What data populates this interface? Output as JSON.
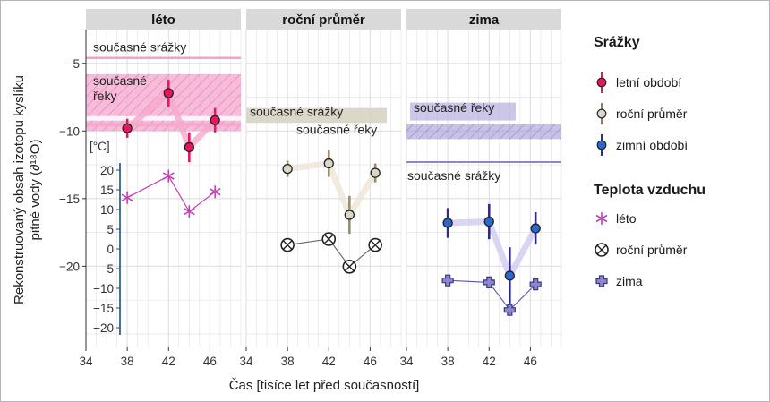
{
  "chart_data": {
    "type": "scatter",
    "panels": [
      {
        "label": "léto",
        "isotope": {
          "color": "#e4185a",
          "x": [
            38,
            42,
            44,
            46.5
          ],
          "y": [
            -9.8,
            -7.2,
            -11.2,
            -9.2
          ],
          "err": [
            0.7,
            1.0,
            1.1,
            0.9
          ]
        },
        "precip_now": {
          "label": "současné srážky",
          "value": -4.6
        },
        "rivers_now": {
          "label": "současné řeky",
          "from": -10.0,
          "to": -5.8
        },
        "temperature": {
          "x": [
            38,
            42,
            44,
            46.5
          ],
          "y": [
            13,
            18.5,
            9.5,
            14.5
          ]
        }
      },
      {
        "label": "roční průměr",
        "isotope": {
          "color": "#d8d8c8",
          "x": [
            38,
            42,
            44,
            46.5
          ],
          "y": [
            -12.8,
            -12.4,
            -16.2,
            -13.1
          ],
          "err": [
            0.6,
            1.0,
            1.4,
            0.7
          ]
        },
        "precip_now": {
          "label": "současné srážky",
          "from": -8.3,
          "to": -9.6
        },
        "rivers_now": {
          "label": "současné řeky",
          "from": -9.4,
          "to": -10.5
        },
        "temperature": {
          "x": [
            38,
            42,
            44,
            46.5
          ],
          "y": [
            1,
            2.5,
            -4.5,
            1
          ]
        }
      },
      {
        "label": "zima",
        "isotope": {
          "color": "#2a67d0",
          "x": [
            38,
            42,
            44,
            46.5
          ],
          "y": [
            -16.8,
            -16.7,
            -20.7,
            -17.2
          ],
          "err": [
            1.1,
            1.3,
            2.1,
            1.2
          ]
        },
        "precip_now": {
          "label": "současné srážky",
          "value": -12.3
        },
        "rivers_now": {
          "label": "současné řeky",
          "from": -9.5,
          "to": -10.6
        },
        "temperature": {
          "x": [
            38,
            42,
            44,
            46.5
          ],
          "y": [
            -8,
            -8.5,
            -15.5,
            -9
          ]
        }
      }
    ],
    "x_ticks": [
      34,
      38,
      42,
      46
    ],
    "xlim": [
      34,
      49
    ],
    "y_ticks": [
      -5,
      -10,
      -15,
      -20
    ],
    "ylim": [
      -26,
      -2.5
    ],
    "temp_ticks": [
      20,
      15,
      10,
      5,
      0,
      -5,
      -10,
      -15,
      -20
    ],
    "temp_unit": "[°C]",
    "xlabel": "Čas [tisíce let před současností]",
    "ylabel_lines": [
      "Rekonstruovaný obsah izotopu kyslíku",
      "pitné vody (∂¹⁸O)"
    ],
    "legend": {
      "precip_title": "Srážky",
      "precip_items": [
        {
          "label": "letní období",
          "color": "#e4185a"
        },
        {
          "label": "roční průměr",
          "color": "#d8d8c8"
        },
        {
          "label": "zimní období",
          "color": "#2a67d0"
        }
      ],
      "temp_title": "Teplota vzduchu",
      "temp_items": [
        {
          "label": "léto",
          "symbol": "star",
          "color": "#c53fb4"
        },
        {
          "label": "roční průměr",
          "symbol": "circle-x",
          "color": "#222222"
        },
        {
          "label": "zima",
          "symbol": "cross",
          "color": "#6b64b4"
        }
      ]
    },
    "colors": {
      "summer_band": "#f4a6cd",
      "summer_hatch": "#e87bb3",
      "annual_band": "#d6d1c0",
      "winter_band": "#9b8fd4",
      "winter_line": "#8f86c8",
      "grid": "#dfdfdf",
      "strip": "#d9d9d9"
    }
  }
}
